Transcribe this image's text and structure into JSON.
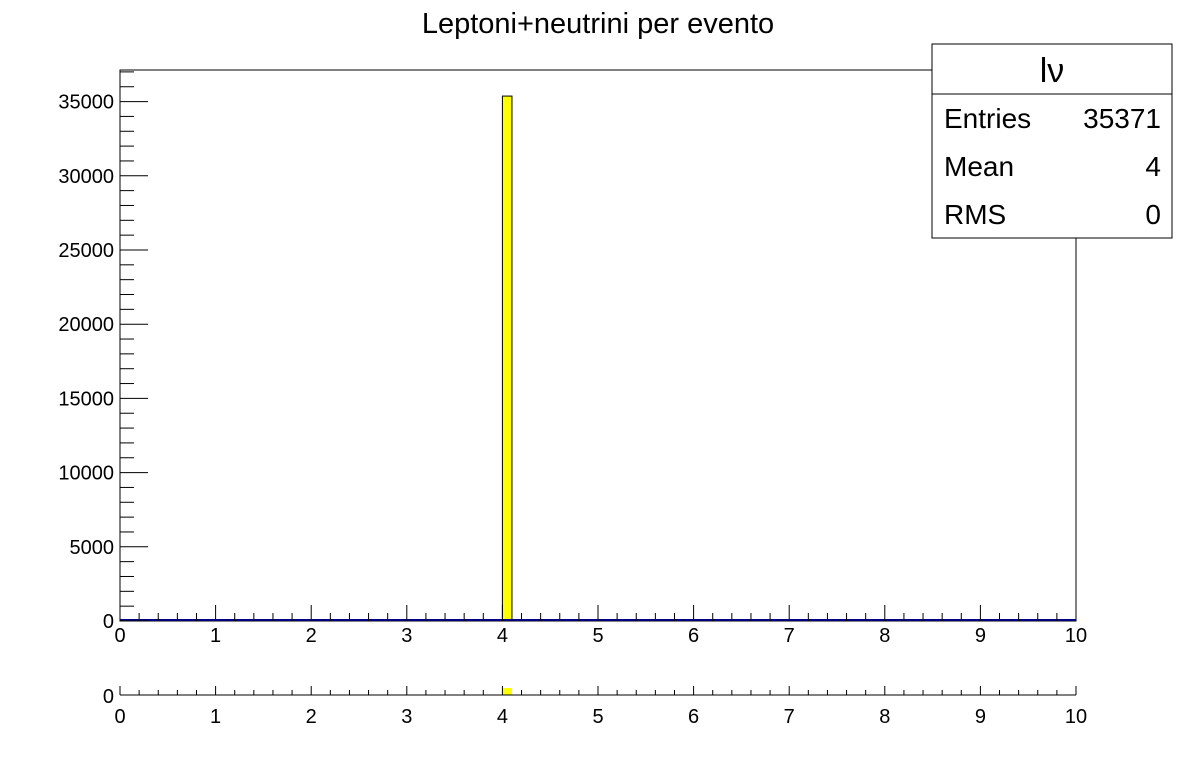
{
  "chart_data": [
    {
      "type": "bar",
      "title": "Leptoni+neutrini per evento",
      "xlabel": "",
      "ylabel": "",
      "xlim": [
        0,
        10
      ],
      "ylim": [
        0,
        37128
      ],
      "x_ticks": [
        "0",
        "1",
        "2",
        "3",
        "4",
        "5",
        "6",
        "7",
        "8",
        "9",
        "10"
      ],
      "y_ticks": [
        "0",
        "5000",
        "10000",
        "15000",
        "20000",
        "25000",
        "30000",
        "35000"
      ],
      "bin_width": 0.1,
      "bins": [
        {
          "x_low": 4.0,
          "x_high": 4.1,
          "value": 35371
        }
      ],
      "bar_color": "#ffff00",
      "grid": false,
      "stats_box": {
        "name": "lν",
        "rows": [
          {
            "label": "Entries",
            "value": "35371"
          },
          {
            "label": "Mean",
            "value": "4"
          },
          {
            "label": "RMS",
            "value": "0"
          }
        ],
        "position": "top-right"
      }
    },
    {
      "type": "bar",
      "title": "",
      "xlim": [
        0,
        10
      ],
      "ylim": [
        0,
        1
      ],
      "x_ticks": [
        "0",
        "1",
        "2",
        "3",
        "4",
        "5",
        "6",
        "7",
        "8",
        "9",
        "10"
      ],
      "y_ticks": [
        "0"
      ],
      "bins": [
        {
          "x_low": 4.0,
          "x_high": 4.1,
          "value": 1
        }
      ],
      "bar_color": "#ffff00"
    }
  ]
}
